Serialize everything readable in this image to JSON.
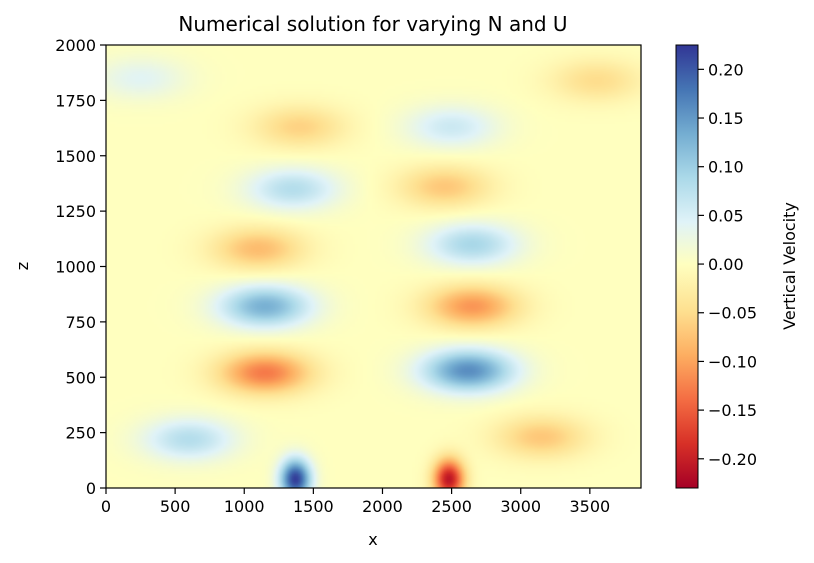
{
  "chart_data": {
    "type": "heatmap",
    "title": "Numerical solution for varying N and U",
    "xlabel": "x",
    "ylabel": "z",
    "xlim": [
      0,
      3870
    ],
    "ylim": [
      0,
      2000
    ],
    "x_ticks": [
      0,
      500,
      1000,
      1500,
      2000,
      2500,
      3000,
      3500
    ],
    "y_ticks": [
      0,
      250,
      500,
      750,
      1000,
      1250,
      1500,
      1750,
      2000
    ],
    "x_tick_labels": [
      "0",
      "500",
      "1000",
      "1500",
      "2000",
      "2500",
      "3000",
      "3500"
    ],
    "y_tick_labels": [
      "0",
      "250",
      "500",
      "750",
      "1000",
      "1250",
      "1500",
      "1750",
      "2000"
    ],
    "colorbar": {
      "label": "Vertical Velocity",
      "colormap": "RdYlBu",
      "vmin": -0.23,
      "vmax": 0.225,
      "ticks": [
        -0.2,
        -0.15,
        -0.1,
        -0.05,
        0.0,
        0.05,
        0.1,
        0.15,
        0.2
      ],
      "tick_labels": [
        "−0.20",
        "−0.15",
        "−0.10",
        "−0.05",
        "0.00",
        "0.05",
        "0.10",
        "0.15",
        "0.20"
      ]
    },
    "features": [
      {
        "x": 1370,
        "z": 40,
        "value": 0.22
      },
      {
        "x": 2480,
        "z": 40,
        "value": -0.21
      },
      {
        "x": 1150,
        "z": 520,
        "value": -0.13
      },
      {
        "x": 2620,
        "z": 530,
        "value": 0.16
      },
      {
        "x": 1150,
        "z": 820,
        "value": 0.13
      },
      {
        "x": 2650,
        "z": 820,
        "value": -0.11
      },
      {
        "x": 1100,
        "z": 1080,
        "value": -0.08
      },
      {
        "x": 2650,
        "z": 1100,
        "value": 0.09
      },
      {
        "x": 1350,
        "z": 1350,
        "value": 0.08
      },
      {
        "x": 2450,
        "z": 1360,
        "value": -0.07
      },
      {
        "x": 1400,
        "z": 1630,
        "value": -0.06
      },
      {
        "x": 2500,
        "z": 1630,
        "value": 0.06
      },
      {
        "x": 600,
        "z": 220,
        "value": 0.08
      },
      {
        "x": 3150,
        "z": 230,
        "value": -0.07
      },
      {
        "x": 250,
        "z": 1850,
        "value": 0.04
      },
      {
        "x": 3550,
        "z": 1840,
        "value": -0.05
      }
    ]
  }
}
